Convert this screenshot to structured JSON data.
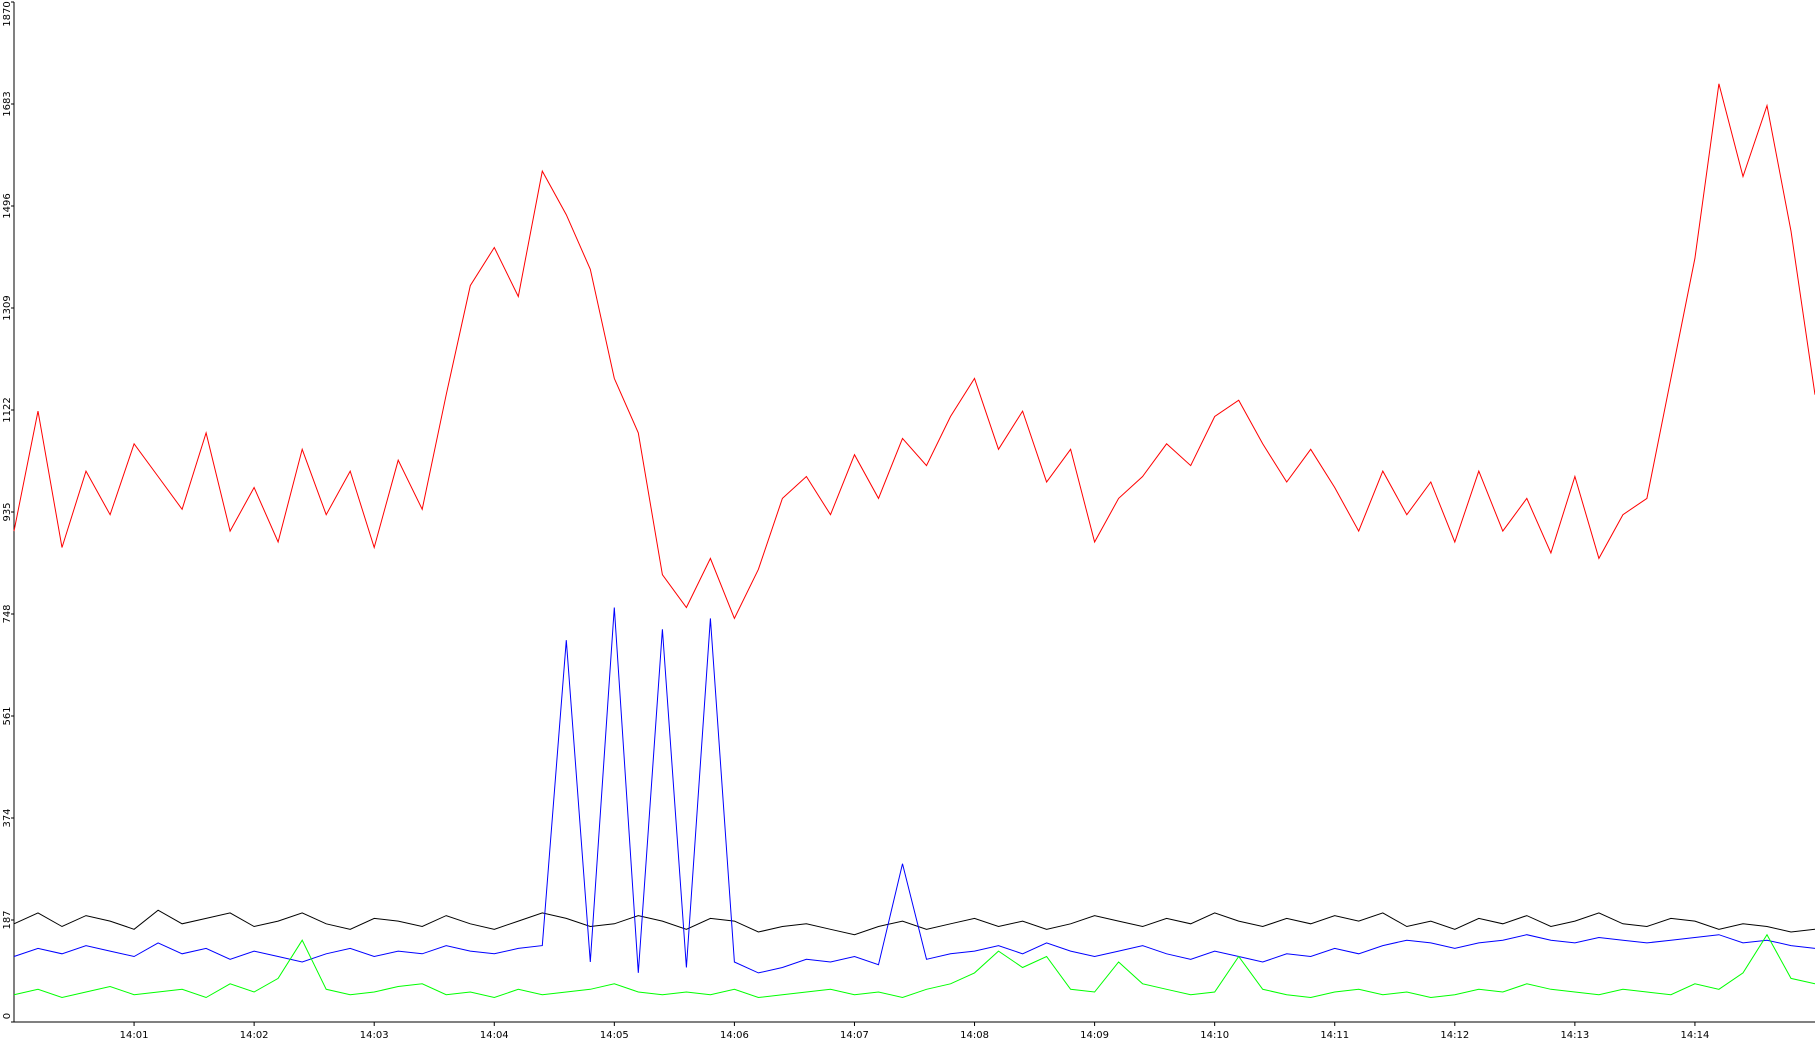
{
  "chart_data": {
    "type": "line",
    "xlim": [
      0,
      15
    ],
    "ylim": [
      0,
      1870
    ],
    "yticks": [
      0,
      187,
      374,
      561,
      748,
      935,
      1122,
      1309,
      1496,
      1683,
      1870
    ],
    "xticks": [
      {
        "value": 1,
        "label": "14:01"
      },
      {
        "value": 2,
        "label": "14:02"
      },
      {
        "value": 3,
        "label": "14:03"
      },
      {
        "value": 4,
        "label": "14:04"
      },
      {
        "value": 5,
        "label": "14:05"
      },
      {
        "value": 6,
        "label": "14:06"
      },
      {
        "value": 7,
        "label": "14:07"
      },
      {
        "value": 8,
        "label": "14:08"
      },
      {
        "value": 9,
        "label": "14:09"
      },
      {
        "value": 10,
        "label": "14:10"
      },
      {
        "value": 11,
        "label": "14:11"
      },
      {
        "value": 12,
        "label": "14:12"
      },
      {
        "value": 13,
        "label": "14:13"
      },
      {
        "value": 14,
        "label": "14:14"
      }
    ],
    "x": [
      0,
      0.2,
      0.4,
      0.6,
      0.8,
      1,
      1.2,
      1.4,
      1.6,
      1.8,
      2,
      2.2,
      2.4,
      2.6,
      2.8,
      3,
      3.2,
      3.4,
      3.6,
      3.8,
      4,
      4.2,
      4.4,
      4.6,
      4.8,
      5,
      5.2,
      5.4,
      5.6,
      5.8,
      6,
      6.2,
      6.4,
      6.6,
      6.8,
      7,
      7.2,
      7.4,
      7.6,
      7.8,
      8,
      8.2,
      8.4,
      8.6,
      8.8,
      9,
      9.2,
      9.4,
      9.6,
      9.8,
      10,
      10.2,
      10.4,
      10.6,
      10.8,
      11,
      11.2,
      11.4,
      11.6,
      11.8,
      12,
      12.2,
      12.4,
      12.6,
      12.8,
      13,
      13.2,
      13.4,
      13.6,
      13.8,
      14,
      14.2,
      14.4,
      14.6,
      14.8,
      15
    ],
    "series": [
      {
        "color": "#ff0000",
        "values": [
          900,
          1120,
          870,
          1010,
          930,
          1060,
          1000,
          940,
          1080,
          900,
          980,
          880,
          1050,
          930,
          1010,
          870,
          1030,
          940,
          1150,
          1350,
          1420,
          1330,
          1560,
          1480,
          1380,
          1180,
          1080,
          820,
          760,
          850,
          740,
          830,
          960,
          1000,
          930,
          1040,
          960,
          1070,
          1020,
          1110,
          1180,
          1050,
          1120,
          990,
          1050,
          880,
          960,
          1000,
          1060,
          1020,
          1110,
          1140,
          1060,
          990,
          1050,
          980,
          900,
          1010,
          930,
          990,
          880,
          1010,
          900,
          960,
          860,
          1000,
          850,
          930,
          960,
          1180,
          1400,
          1720,
          1550,
          1680,
          1450,
          1150
        ]
      },
      {
        "color": "#000000",
        "values": [
          180,
          200,
          175,
          195,
          185,
          170,
          205,
          180,
          190,
          200,
          175,
          185,
          200,
          180,
          170,
          190,
          185,
          175,
          195,
          180,
          170,
          185,
          200,
          190,
          175,
          180,
          195,
          185,
          170,
          190,
          185,
          165,
          175,
          180,
          170,
          160,
          175,
          185,
          170,
          180,
          190,
          175,
          185,
          170,
          180,
          195,
          185,
          175,
          190,
          180,
          200,
          185,
          175,
          190,
          180,
          195,
          185,
          200,
          175,
          185,
          170,
          190,
          180,
          195,
          175,
          185,
          200,
          180,
          175,
          190,
          185,
          170,
          180,
          175,
          165,
          170
        ]
      },
      {
        "color": "#0000ff",
        "values": [
          120,
          135,
          125,
          140,
          130,
          120,
          145,
          125,
          135,
          115,
          130,
          120,
          110,
          125,
          135,
          120,
          130,
          125,
          140,
          130,
          125,
          135,
          140,
          700,
          110,
          760,
          90,
          720,
          100,
          740,
          110,
          90,
          100,
          115,
          110,
          120,
          105,
          290,
          115,
          125,
          130,
          140,
          125,
          145,
          130,
          120,
          130,
          140,
          125,
          115,
          130,
          120,
          110,
          125,
          120,
          135,
          125,
          140,
          150,
          145,
          135,
          145,
          150,
          160,
          150,
          145,
          155,
          150,
          145,
          150,
          155,
          160,
          145,
          150,
          140,
          135
        ]
      },
      {
        "color": "#00ff00",
        "values": [
          50,
          60,
          45,
          55,
          65,
          50,
          55,
          60,
          45,
          70,
          55,
          80,
          150,
          60,
          50,
          55,
          65,
          70,
          50,
          55,
          45,
          60,
          50,
          55,
          60,
          70,
          55,
          50,
          55,
          50,
          60,
          45,
          50,
          55,
          60,
          50,
          55,
          45,
          60,
          70,
          90,
          130,
          100,
          120,
          60,
          55,
          110,
          70,
          60,
          50,
          55,
          120,
          60,
          50,
          45,
          55,
          60,
          50,
          55,
          45,
          50,
          60,
          55,
          70,
          60,
          55,
          50,
          60,
          55,
          50,
          70,
          60,
          90,
          160,
          80,
          70
        ]
      }
    ]
  }
}
